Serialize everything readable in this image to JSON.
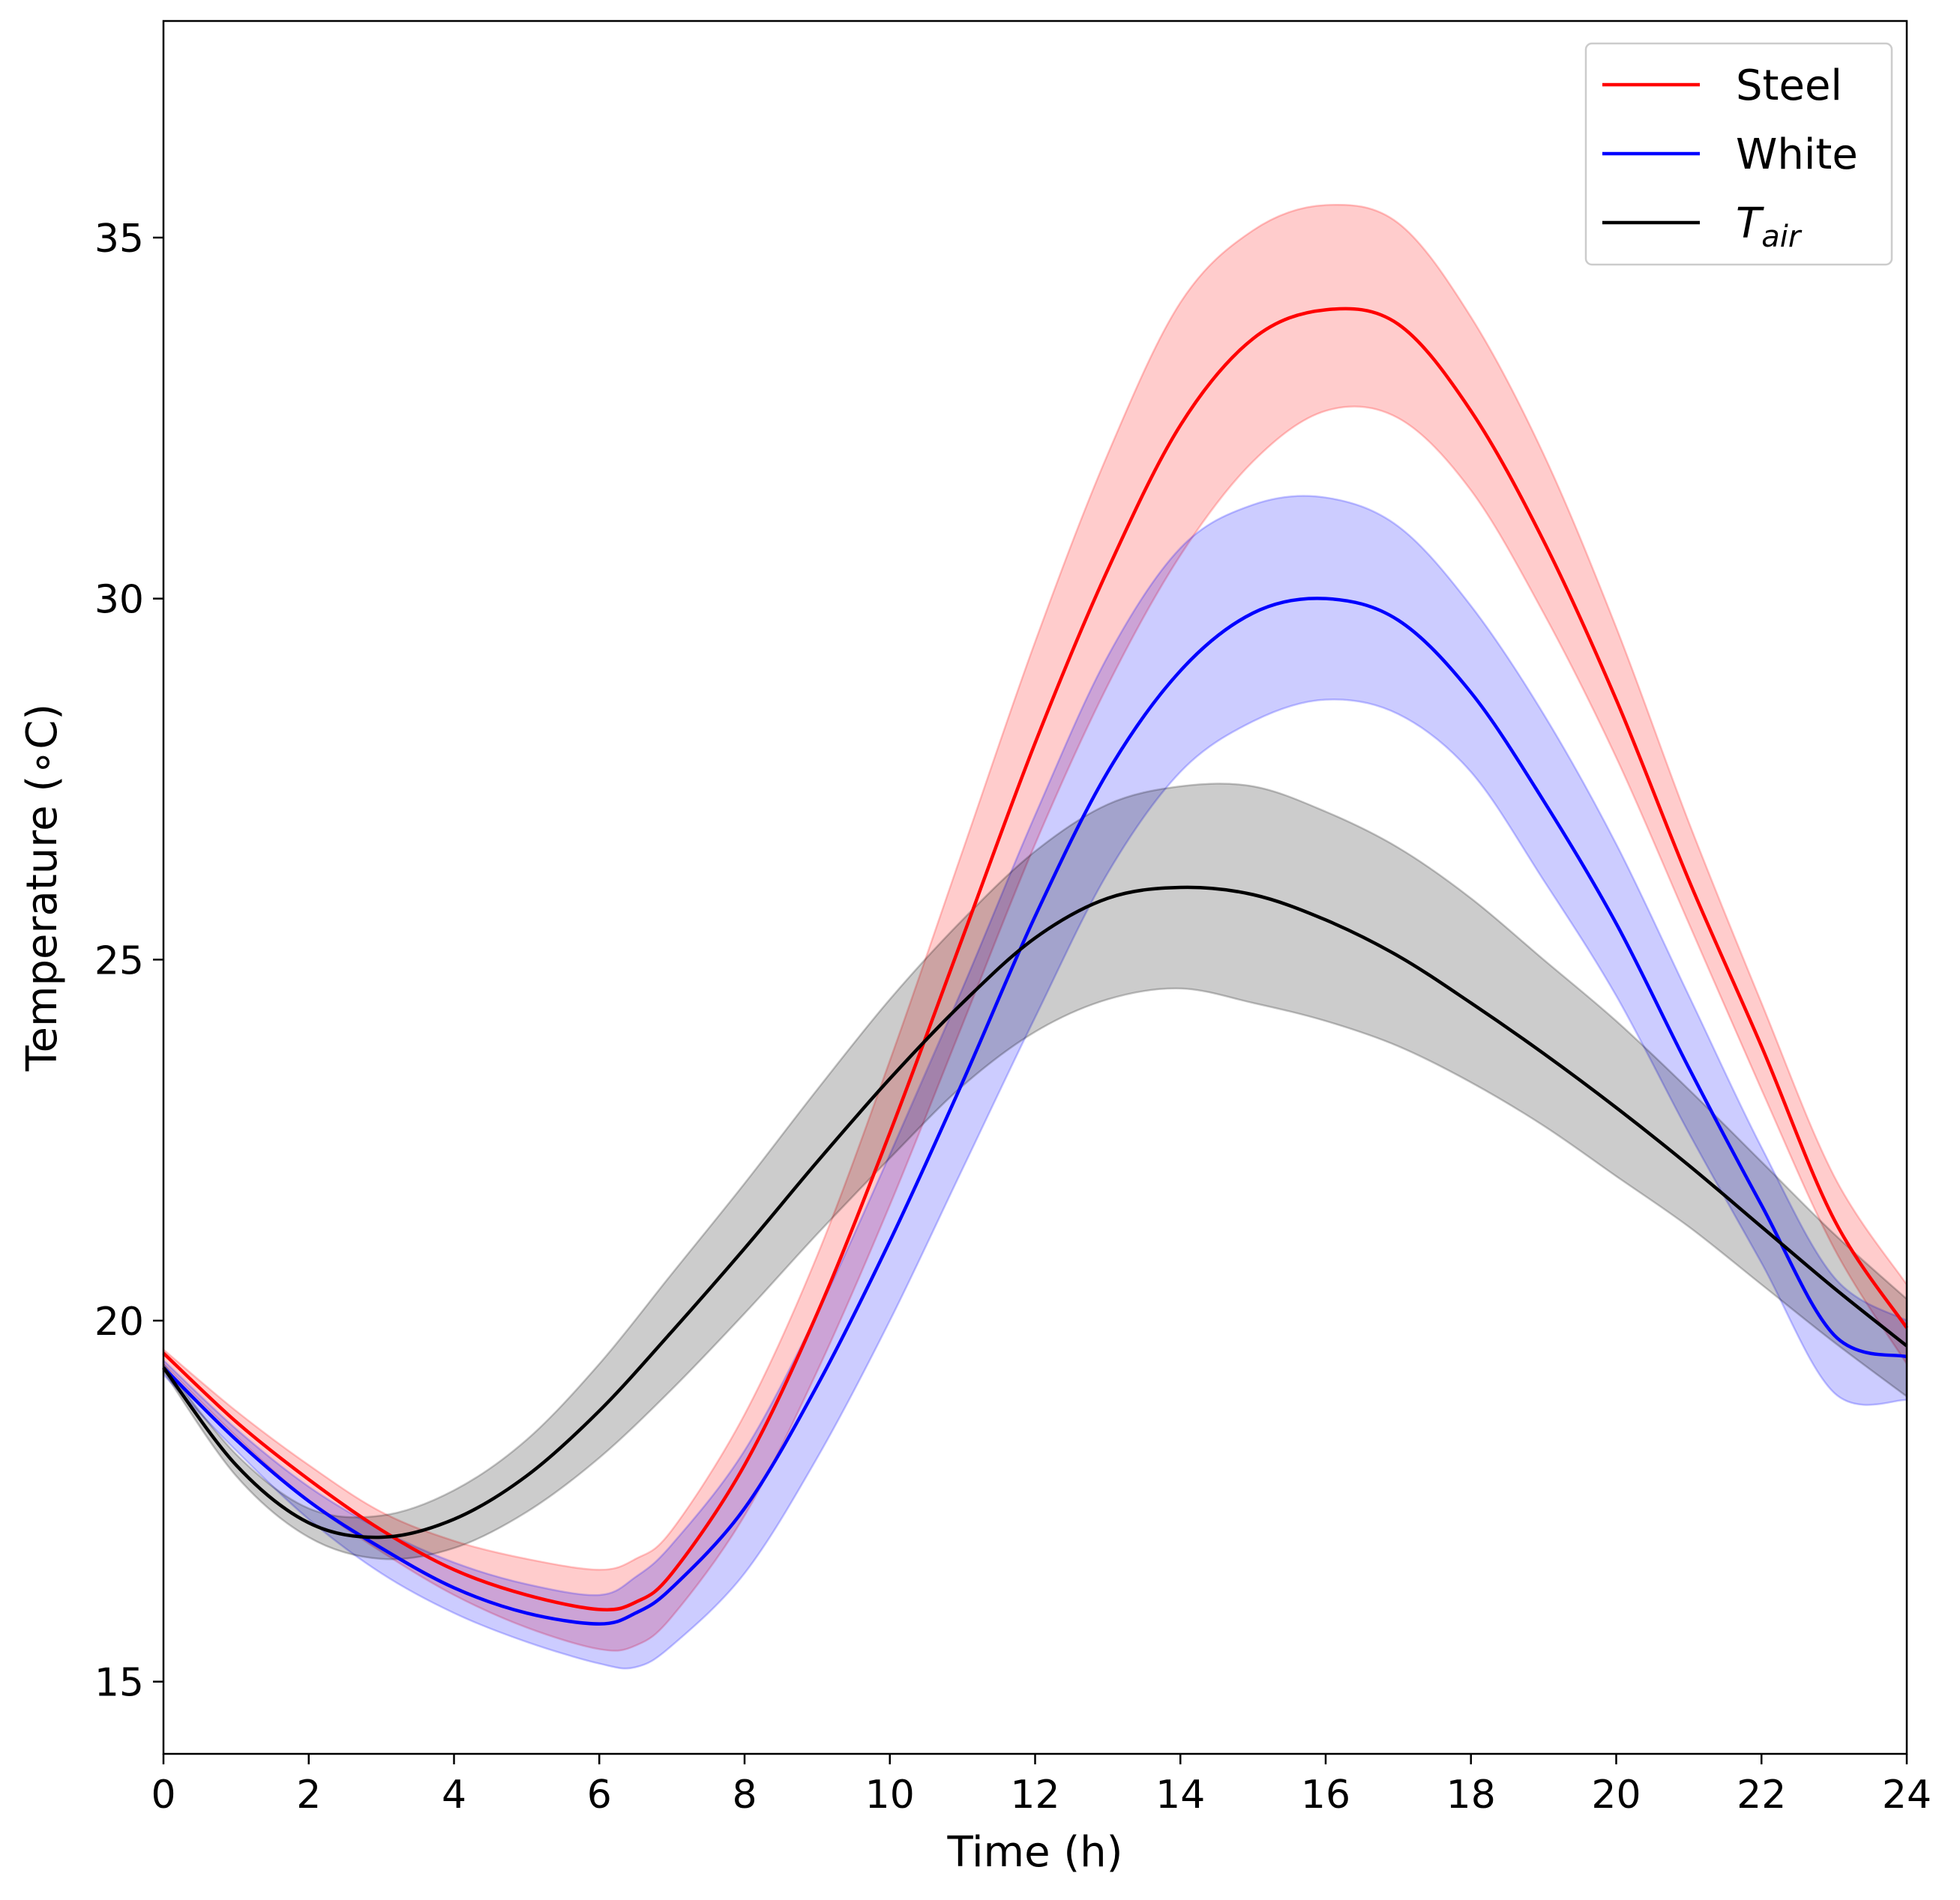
{
  "chart_data": {
    "type": "line",
    "xlabel": "Time (h)",
    "ylabel": "Temperature (∘C)",
    "xlim": [
      0,
      24
    ],
    "ylim": [
      14,
      38
    ],
    "xticks": [
      0,
      2,
      4,
      6,
      8,
      10,
      12,
      14,
      16,
      18,
      20,
      22,
      24
    ],
    "yticks": [
      15,
      20,
      25,
      30,
      35
    ],
    "grid": false,
    "legend_position": "top-right",
    "series": [
      {
        "name": "Steel",
        "color": "#ff0000",
        "band_color": "#ff0000",
        "x": [
          0,
          1,
          2,
          3,
          4,
          5,
          6,
          6.5,
          7,
          8,
          9,
          10,
          11,
          12,
          13,
          14,
          15,
          16,
          17,
          18,
          19,
          20,
          21,
          22,
          23,
          24
        ],
        "y": [
          19.55,
          18.6,
          17.8,
          17.1,
          16.55,
          16.2,
          16.0,
          16.1,
          16.5,
          18.0,
          20.1,
          22.6,
          25.3,
          28.0,
          30.4,
          32.4,
          33.6,
          34.0,
          33.8,
          32.6,
          30.8,
          28.6,
          26.1,
          23.8,
          21.4,
          19.9
        ],
        "lower": [
          19.4,
          18.4,
          17.5,
          16.8,
          16.2,
          15.75,
          15.45,
          15.5,
          15.9,
          17.3,
          19.3,
          21.6,
          24.1,
          26.6,
          28.8,
          30.6,
          31.9,
          32.6,
          32.5,
          31.5,
          29.8,
          27.8,
          25.5,
          23.2,
          21.0,
          19.4
        ],
        "upper": [
          19.6,
          18.75,
          18.0,
          17.35,
          16.95,
          16.7,
          16.55,
          16.7,
          17.1,
          18.7,
          20.9,
          23.6,
          26.5,
          29.4,
          32.0,
          34.1,
          35.1,
          35.45,
          35.2,
          33.9,
          32.0,
          29.6,
          26.9,
          24.4,
          22.0,
          20.5
        ]
      },
      {
        "name": "White",
        "color": "#0000ff",
        "band_color": "#0000ff",
        "x": [
          0,
          1,
          2,
          3,
          4,
          5,
          6,
          6.5,
          7,
          8,
          9,
          10,
          11,
          12,
          13,
          14,
          15,
          16,
          17,
          18,
          19,
          20,
          21,
          22,
          23,
          24
        ],
        "y": [
          19.35,
          18.35,
          17.5,
          16.85,
          16.3,
          15.95,
          15.8,
          15.95,
          16.3,
          17.4,
          19.1,
          21.1,
          23.3,
          25.6,
          27.6,
          29.0,
          29.8,
          30.0,
          29.7,
          28.7,
          27.2,
          25.5,
          23.5,
          21.6,
          19.8,
          19.5
        ],
        "lower": [
          19.25,
          18.2,
          17.25,
          16.5,
          15.95,
          15.55,
          15.25,
          15.2,
          15.5,
          16.5,
          18.1,
          20.0,
          22.1,
          24.2,
          26.2,
          27.6,
          28.3,
          28.6,
          28.4,
          27.6,
          26.1,
          24.5,
          22.6,
          20.8,
          19.0,
          18.9
        ],
        "upper": [
          19.45,
          18.5,
          17.7,
          17.1,
          16.65,
          16.35,
          16.2,
          16.45,
          16.9,
          18.2,
          20.1,
          22.3,
          24.6,
          27.0,
          29.2,
          30.7,
          31.3,
          31.4,
          31.0,
          29.9,
          28.4,
          26.6,
          24.5,
          22.4,
          20.6,
          20.0
        ]
      },
      {
        "name": "T_air",
        "label_main": "T",
        "label_sub": "air",
        "color": "#000000",
        "band_color": "#000000",
        "x": [
          0,
          1,
          2,
          3,
          4,
          5,
          6,
          7,
          8,
          9,
          10,
          11,
          12,
          13,
          14,
          15,
          16,
          17,
          18,
          19,
          20,
          21,
          22,
          23,
          24
        ],
        "y": [
          19.35,
          18.0,
          17.2,
          17.0,
          17.25,
          17.85,
          18.75,
          19.85,
          21.0,
          22.2,
          23.35,
          24.4,
          25.3,
          25.85,
          26.0,
          25.9,
          25.55,
          25.05,
          24.4,
          23.7,
          22.95,
          22.15,
          21.3,
          20.45,
          19.65
        ],
        "lower": [
          19.3,
          17.85,
          17.0,
          16.7,
          16.85,
          17.35,
          18.1,
          19.05,
          20.1,
          21.2,
          22.25,
          23.25,
          24.0,
          24.45,
          24.6,
          24.4,
          24.15,
          23.8,
          23.3,
          22.7,
          22.0,
          21.3,
          20.5,
          19.7,
          18.95
        ],
        "upper": [
          19.4,
          18.15,
          17.4,
          17.3,
          17.65,
          18.35,
          19.4,
          20.65,
          21.9,
          23.2,
          24.45,
          25.55,
          26.5,
          27.15,
          27.4,
          27.4,
          27.05,
          26.55,
          25.85,
          25.0,
          24.15,
          23.2,
          22.2,
          21.2,
          20.3
        ]
      }
    ]
  }
}
